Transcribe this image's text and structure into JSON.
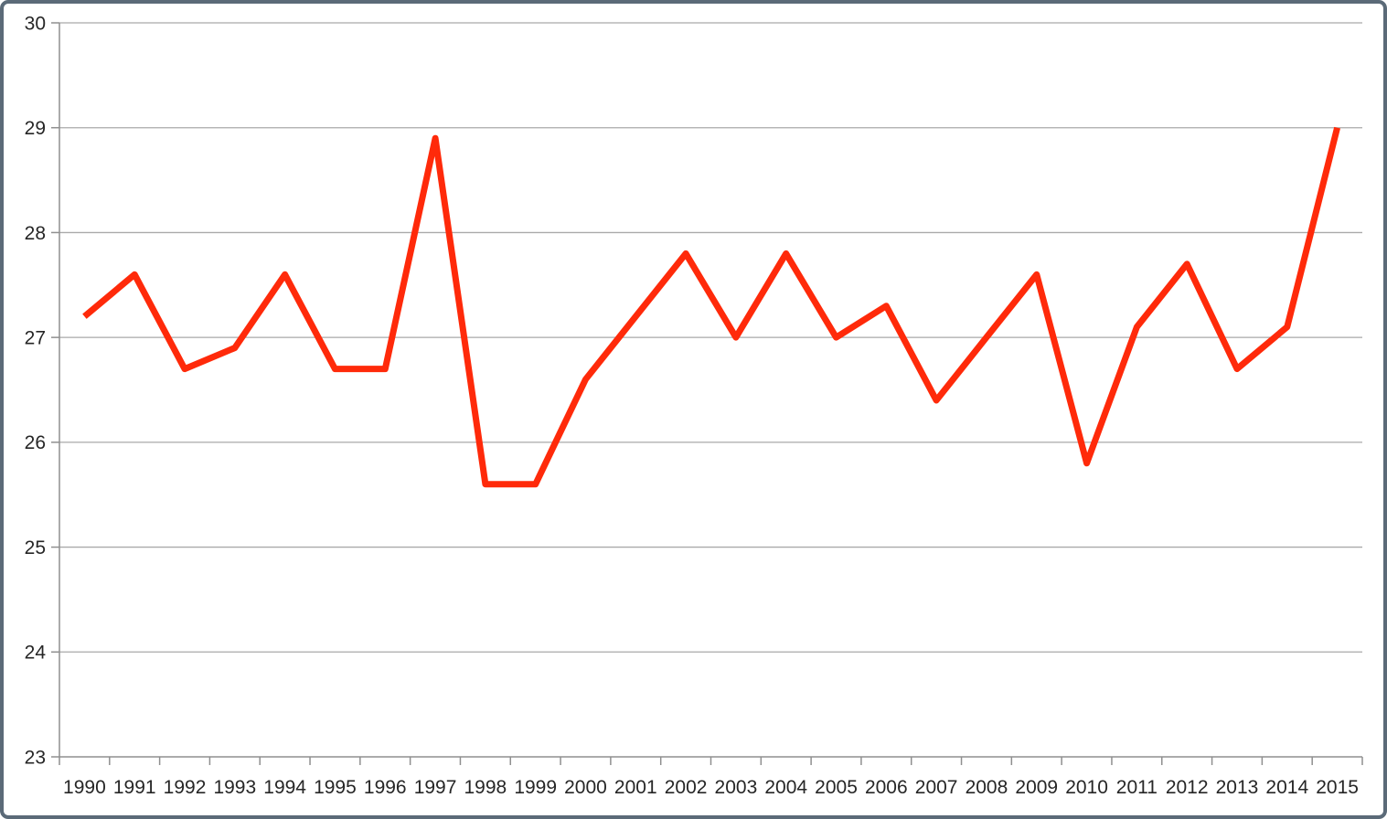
{
  "window": {
    "background_color": "#ffffff",
    "border_color": "#5b6a78"
  },
  "chart_data": {
    "type": "line",
    "title": "",
    "xlabel": "",
    "ylabel": "",
    "categories": [
      "1990",
      "1991",
      "1992",
      "1993",
      "1994",
      "1995",
      "1996",
      "1997",
      "1998",
      "1999",
      "2000",
      "2001",
      "2002",
      "2003",
      "2004",
      "2005",
      "2006",
      "2007",
      "2008",
      "2009",
      "2010",
      "2011",
      "2012",
      "2013",
      "2014",
      "2015"
    ],
    "values": [
      27.2,
      27.6,
      26.7,
      26.9,
      27.6,
      26.7,
      26.7,
      28.9,
      25.6,
      25.6,
      26.6,
      27.2,
      27.8,
      27.0,
      27.8,
      27.0,
      27.3,
      26.4,
      27.0,
      27.6,
      25.8,
      27.1,
      27.7,
      26.7,
      27.1,
      29.0
    ],
    "ylim": [
      23,
      30
    ],
    "yticks": [
      23,
      24,
      25,
      26,
      27,
      28,
      29,
      30
    ],
    "grid": "horizontal",
    "legend": "none",
    "line_color": "#ff2a0a",
    "gridline_color": "#a9a9a9",
    "axis_color": "#8f8f8f",
    "label_color": "#262626"
  }
}
